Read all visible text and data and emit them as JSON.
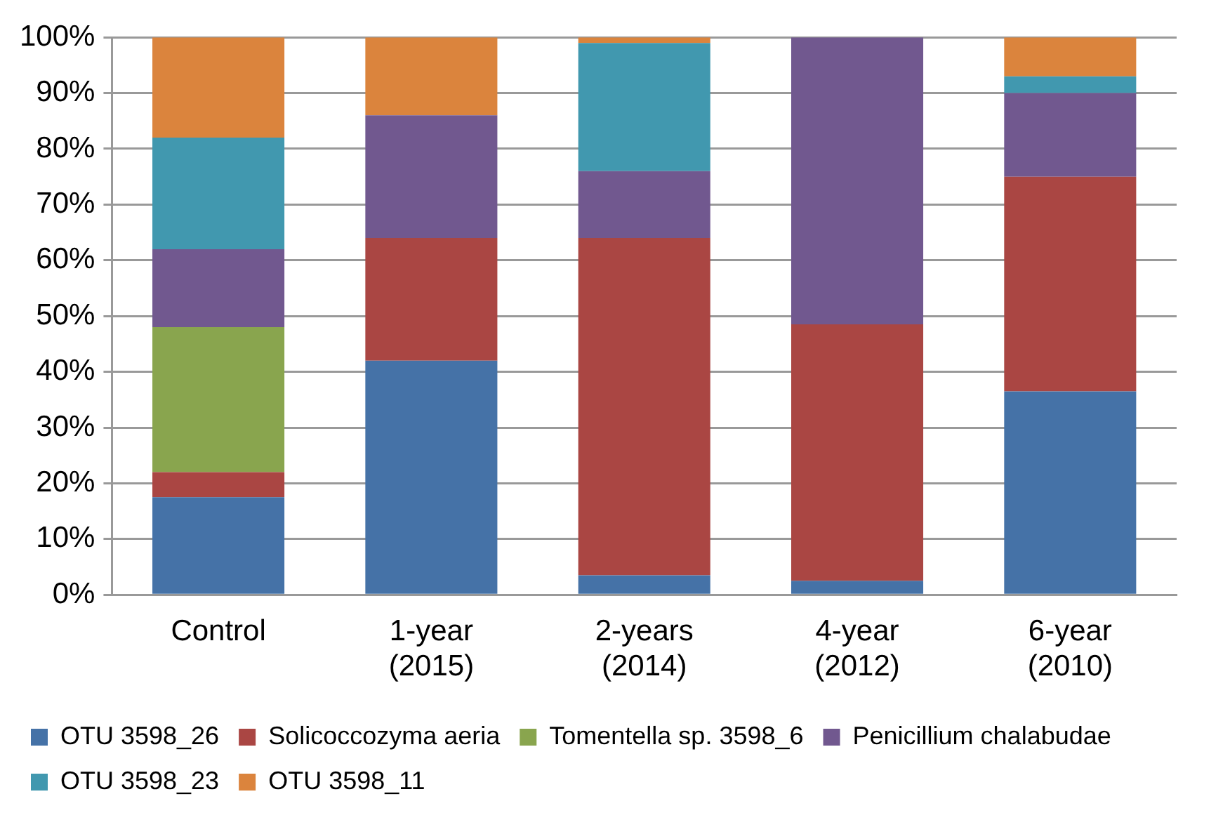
{
  "chart_data": {
    "type": "bar",
    "stacked": true,
    "categories": [
      "Control",
      "1-year\n(2015)",
      "2-years\n(2014)",
      "4-year\n(2012)",
      "6-year\n(2010)"
    ],
    "series": [
      {
        "name": "OTU 3598_26",
        "color": "#4572a7",
        "values": [
          17.5,
          42,
          3.5,
          2.5,
          36.5
        ]
      },
      {
        "name": "Solicoccozyma aeria",
        "color": "#aa4643",
        "values": [
          4.5,
          22,
          60.5,
          46,
          38.5
        ]
      },
      {
        "name": "Tomentella sp. 3598_6",
        "color": "#89a54e",
        "values": [
          26,
          0,
          0,
          0,
          0
        ]
      },
      {
        "name": "Penicillium chalabudae",
        "color": "#71588f",
        "values": [
          14,
          22,
          12,
          51.5,
          15
        ]
      },
      {
        "name": "OTU 3598_23",
        "color": "#4198af",
        "values": [
          20,
          0,
          23,
          0,
          3
        ]
      },
      {
        "name": "OTU 3598_11",
        "color": "#db843d",
        "values": [
          18,
          14,
          1,
          0,
          7
        ]
      }
    ],
    "ylim": [
      0,
      100
    ],
    "yticks": [
      {
        "value": 0,
        "label": "0%"
      },
      {
        "value": 10,
        "label": "10%"
      },
      {
        "value": 20,
        "label": "20%"
      },
      {
        "value": 30,
        "label": "30%"
      },
      {
        "value": 40,
        "label": "40%"
      },
      {
        "value": 50,
        "label": "50%"
      },
      {
        "value": 60,
        "label": "60%"
      },
      {
        "value": 70,
        "label": "70%"
      },
      {
        "value": 80,
        "label": "80%"
      },
      {
        "value": 90,
        "label": "90%"
      },
      {
        "value": 100,
        "label": "100%"
      }
    ],
    "grid": "y",
    "legend": "bottom"
  }
}
